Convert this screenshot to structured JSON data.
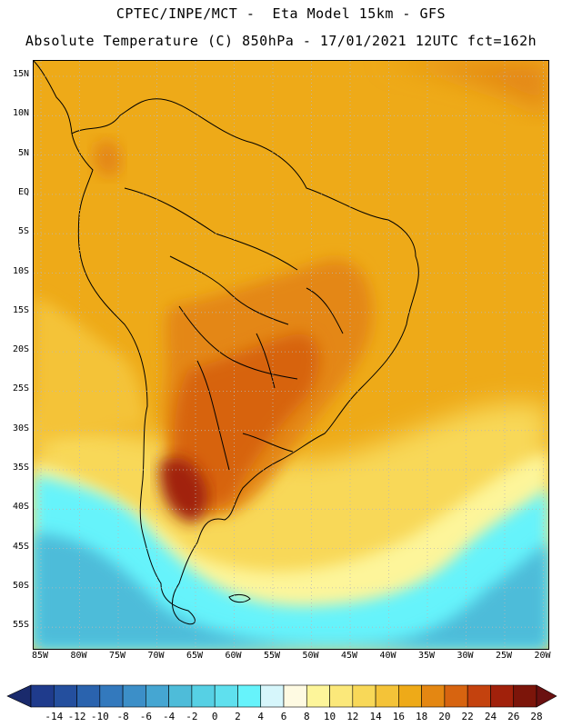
{
  "header": {
    "line1": "CPTEC/INPE/MCT -  Eta Model 15km - GFS",
    "line2": "Absolute Temperature (C) 850hPa - 17/01/2021 12UTC fct=162h"
  },
  "map": {
    "lat_labels": [
      "15N",
      "10N",
      "5N",
      "EQ",
      "5S",
      "10S",
      "15S",
      "20S",
      "25S",
      "30S",
      "35S",
      "40S",
      "45S",
      "50S",
      "55S"
    ],
    "lon_labels": [
      "85W",
      "80W",
      "75W",
      "70W",
      "65W",
      "60W",
      "55W",
      "50W",
      "45W",
      "40W",
      "35W",
      "30W",
      "25W",
      "20W"
    ]
  },
  "colorbar": {
    "labels": [
      "-14",
      "-12",
      "-10",
      "-8",
      "-6",
      "-4",
      "-2",
      "0",
      "2",
      "4",
      "6",
      "8",
      "10",
      "12",
      "14",
      "16",
      "18",
      "20",
      "22",
      "24",
      "26",
      "28"
    ],
    "colors": [
      "#1f3b8c",
      "#244f9e",
      "#2a63ae",
      "#3379bd",
      "#3c8fc8",
      "#45a6d2",
      "#4ebcd9",
      "#56d0e4",
      "#5fe0ee",
      "#66f3fb",
      "#d6f6fb",
      "#fefae2",
      "#fdf59a",
      "#fbe87a",
      "#f8d858",
      "#f4c338",
      "#eeaa18",
      "#e48712",
      "#d76410",
      "#c4420e",
      "#a1210b",
      "#7c150a"
    ],
    "left_arrow_color": "#1a2a6c",
    "right_arrow_color": "#6a1010"
  }
}
